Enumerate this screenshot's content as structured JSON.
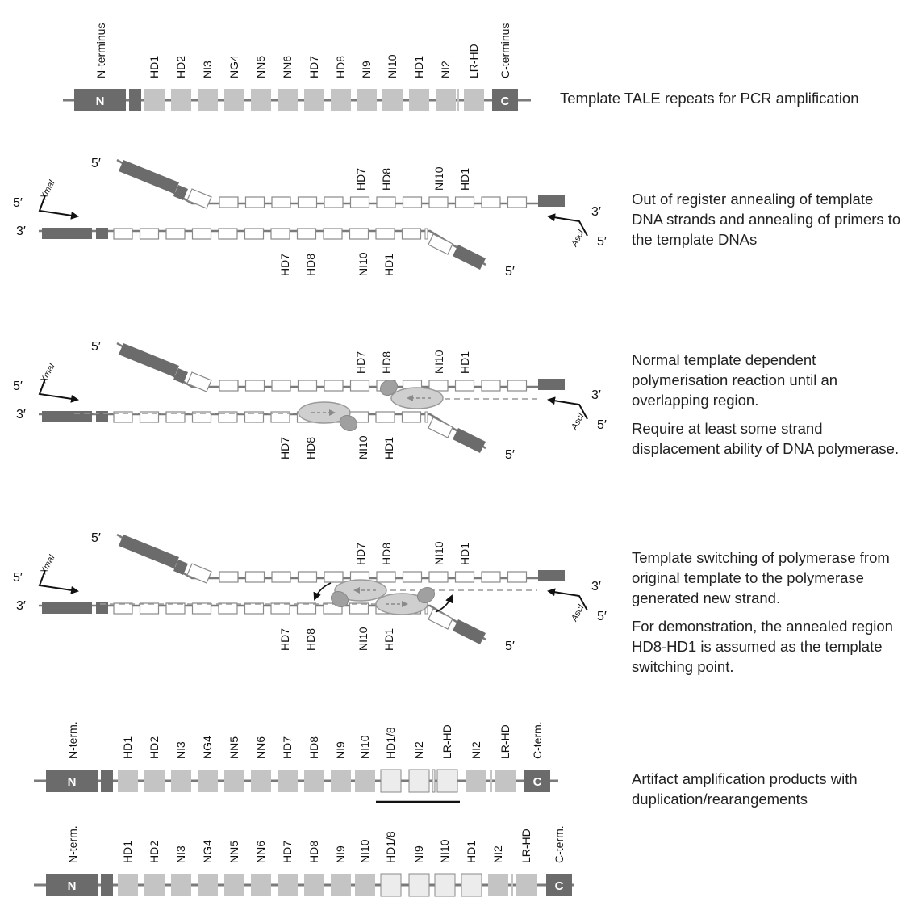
{
  "labels": {
    "n_terminus": "N-terminus",
    "c_terminus": "C-terminus",
    "n_term": "N-term.",
    "c_term": "C-term.",
    "n_box": "N",
    "c_box": "C",
    "five_prime": "5′",
    "three_prime": "3′",
    "xmai": "XmaI",
    "asci": "AscI"
  },
  "template_repeats": [
    "HD1",
    "HD2",
    "NI3",
    "NG4",
    "NN5",
    "NN6",
    "HD7",
    "HD8",
    "NI9",
    "NI10",
    "HD1",
    "NI2",
    "LR-HD"
  ],
  "strand_top_labels": [
    "HD7",
    "HD8",
    "NI10",
    "HD1"
  ],
  "strand_bottom_labels": [
    "HD7",
    "HD8",
    "NI10",
    "HD1"
  ],
  "artifact1_repeats": [
    "HD1",
    "HD2",
    "NI3",
    "NG4",
    "NN5",
    "NN6",
    "HD7",
    "HD8",
    "NI9",
    "NI10",
    "HD1/8",
    "NI2",
    "LR-HD",
    "NI2",
    "LR-HD"
  ],
  "artifact2_repeats": [
    "HD1",
    "HD2",
    "NI3",
    "NG4",
    "NN5",
    "NN6",
    "HD7",
    "HD8",
    "NI9",
    "NI10",
    "HD1/8",
    "NI9",
    "NI10",
    "HD1",
    "NI2",
    "LR-HD"
  ],
  "descriptions": {
    "d1": "Template TALE repeats for PCR amplification",
    "d2": "Out of register annealing of template DNA strands  and annealing of primers to the template DNAs",
    "d3a": "Normal template dependent polymerisation reaction until an overlapping region.",
    "d3b": "Require at least some strand displacement ability of DNA polymerase.",
    "d4a": "Template switching of polymerase from original template to the polymerase generated new strand.",
    "d4b": "For demonstration, the annealed region HD8-HD1 is assumed as the template switching point.",
    "d5": "Artifact  amplification products with duplication/rearangements"
  },
  "colors": {
    "terminal": "#6b6b6b",
    "repeat": "#c4c4c4",
    "light_repeat": "#ececec",
    "line": "#7a7a7a",
    "polymerase": "#cfcfcf",
    "polymerase_dark": "#9a9a9a"
  }
}
